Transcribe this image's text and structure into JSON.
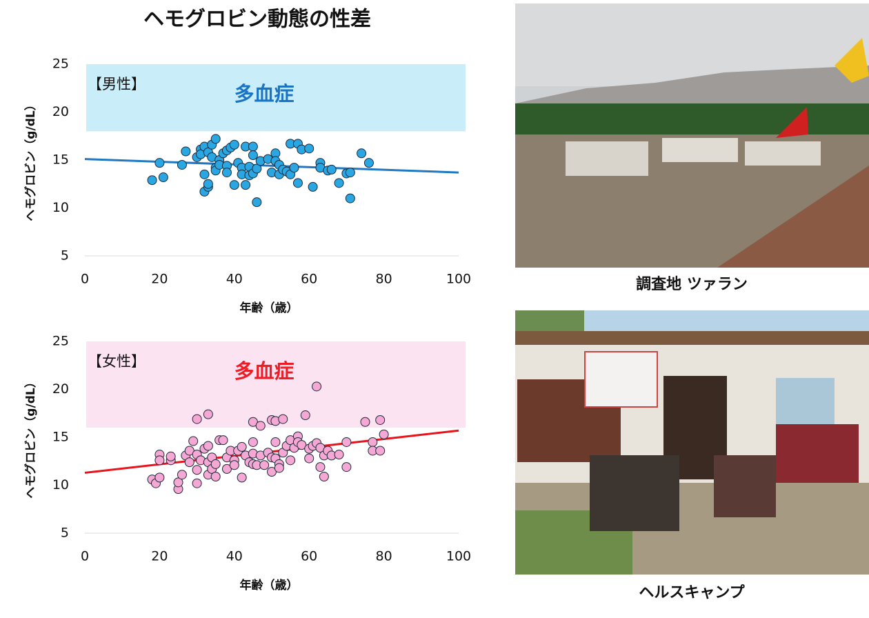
{
  "title": "ヘモグロビン動態の性差",
  "chart_data": [
    {
      "type": "scatter",
      "panel_label": "【男性】",
      "band_label": "多血症",
      "band_range": [
        18,
        25
      ],
      "band_color": "#c9eef9",
      "band_label_color": "#1a74c4",
      "xlabel": "年齢（歳）",
      "ylabel": "ヘモグロビン（g/dL）",
      "xlim": [
        0,
        100
      ],
      "ylim": [
        5,
        25
      ],
      "xticks": [
        0,
        20,
        40,
        60,
        80,
        100
      ],
      "yticks": [
        5,
        10,
        15,
        20,
        25
      ],
      "color": "#2aa6e2",
      "x": [
        18,
        20,
        21,
        26,
        27,
        30,
        31,
        31,
        32,
        32,
        32,
        33,
        33,
        33,
        34,
        34,
        35,
        35,
        35,
        36,
        36,
        37,
        38,
        38,
        38,
        39,
        40,
        40,
        41,
        42,
        42,
        43,
        43,
        44,
        44,
        45,
        45,
        45,
        46,
        46,
        47,
        49,
        50,
        51,
        51,
        52,
        52,
        53,
        54,
        55,
        55,
        56,
        57,
        57,
        58,
        60,
        61,
        63,
        63,
        65,
        66,
        68,
        70,
        71,
        71,
        74,
        76
      ],
      "values": [
        12.9,
        14.7,
        13.2,
        14.5,
        15.9,
        15.3,
        16.1,
        15.6,
        16.4,
        13.5,
        11.7,
        12.2,
        12.5,
        15.8,
        16.6,
        15.3,
        17.2,
        14.2,
        13.9,
        15.0,
        14.5,
        15.7,
        16.0,
        14.4,
        13.7,
        16.3,
        16.6,
        12.4,
        14.7,
        14.2,
        13.5,
        16.4,
        12.4,
        14.3,
        13.4,
        16.4,
        15.5,
        13.6,
        10.6,
        14.1,
        14.9,
        15.1,
        13.7,
        15.7,
        14.9,
        14.5,
        13.5,
        14.0,
        13.8,
        16.7,
        13.5,
        14.2,
        16.7,
        12.6,
        16.1,
        16.2,
        12.2,
        14.7,
        14.2,
        13.9,
        14.0,
        12.6,
        13.6,
        11.0,
        13.7,
        15.7,
        14.7
      ],
      "trendline": {
        "x": [
          0,
          100
        ],
        "y": [
          15.1,
          13.7
        ],
        "color": "#1f78c1"
      }
    },
    {
      "type": "scatter",
      "panel_label": "【女性】",
      "band_label": "多血症",
      "band_range": [
        16,
        25
      ],
      "band_color": "#fbe3f2",
      "band_label_color": "#ee1c24",
      "xlabel": "年齢（歳）",
      "ylabel": "ヘモグロビン（g/dL）",
      "xlim": [
        0,
        100
      ],
      "ylim": [
        5,
        25
      ],
      "xticks": [
        0,
        20,
        40,
        60,
        80,
        100
      ],
      "yticks": [
        5,
        10,
        15,
        20,
        25
      ],
      "color": "#f5a8d3",
      "x": [
        18,
        19,
        20,
        20,
        20,
        23,
        23,
        25,
        25,
        26,
        27,
        28,
        28,
        29,
        30,
        30,
        30,
        30,
        31,
        32,
        33,
        33,
        33,
        33,
        34,
        34,
        35,
        35,
        36,
        37,
        38,
        38,
        39,
        40,
        40,
        41,
        42,
        42,
        43,
        44,
        45,
        45,
        45,
        45,
        46,
        47,
        47,
        48,
        49,
        50,
        50,
        50,
        51,
        51,
        51,
        52,
        52,
        53,
        53,
        54,
        55,
        55,
        56,
        57,
        57,
        58,
        59,
        60,
        60,
        61,
        62,
        62,
        63,
        63,
        64,
        64,
        65,
        66,
        68,
        70,
        70,
        75,
        77,
        77,
        79,
        79,
        80
      ],
      "values": [
        10.6,
        10.2,
        10.8,
        13.2,
        12.6,
        12.6,
        13.0,
        9.6,
        10.3,
        11.1,
        13.1,
        13.6,
        12.4,
        14.6,
        16.9,
        13.2,
        11.6,
        10.2,
        12.6,
        13.8,
        17.4,
        14.1,
        12.4,
        11.1,
        12.9,
        11.7,
        12.2,
        10.9,
        14.7,
        14.7,
        12.9,
        11.7,
        13.6,
        12.6,
        12.1,
        13.6,
        14.0,
        10.8,
        13.1,
        12.4,
        16.6,
        14.5,
        13.3,
        12.2,
        12.1,
        16.2,
        13.1,
        12.1,
        13.4,
        16.8,
        12.9,
        11.4,
        16.7,
        14.5,
        12.8,
        12.2,
        11.8,
        16.9,
        13.4,
        14.1,
        12.6,
        14.7,
        13.9,
        15.1,
        14.5,
        14.2,
        17.3,
        12.8,
        13.8,
        14.1,
        20.3,
        14.4,
        13.9,
        11.9,
        13.1,
        10.9,
        13.6,
        13.1,
        13.2,
        14.5,
        11.9,
        16.6,
        14.5,
        13.6,
        16.8,
        13.6,
        15.3
      ],
      "trendline": {
        "x": [
          0,
          100
        ],
        "y": [
          11.3,
          15.7
        ],
        "color": "#e8131b"
      }
    }
  ],
  "photos": [
    {
      "caption": "調査地 ツァラン"
    },
    {
      "caption": "ヘルスキャンプ"
    }
  ]
}
